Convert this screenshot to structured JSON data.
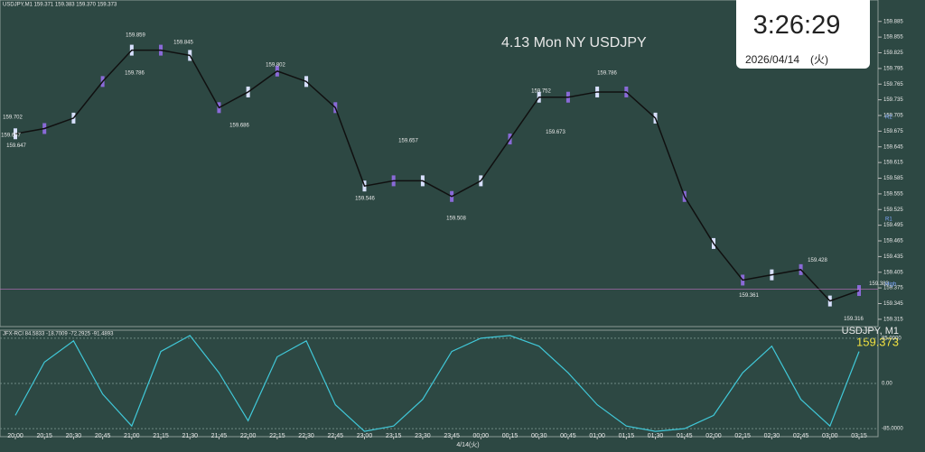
{
  "chart_data": {
    "type": "line",
    "header": "USDJPY,M1  159.371 159.383 159.370 159.373",
    "title": "4.13 Mon NY USDJPY",
    "date_label": "4/14(火)",
    "categories": [
      "20:00",
      "20:15",
      "20:30",
      "20:45",
      "21:00",
      "21:15",
      "21:30",
      "21:45",
      "22:00",
      "22:15",
      "22:30",
      "22:45",
      "23:00",
      "23:15",
      "23:30",
      "23:45",
      "00:00",
      "00:15",
      "00:30",
      "00:45",
      "01:00",
      "01:15",
      "01:30",
      "01:45",
      "02:00",
      "02:15",
      "02:30",
      "02:45",
      "03:00",
      "03:15"
    ],
    "series": [
      {
        "name": "USDJPY, M1",
        "color": "#d8e0ff",
        "values": [
          159.67,
          159.68,
          159.7,
          159.77,
          159.83,
          159.83,
          159.82,
          159.72,
          159.75,
          159.79,
          159.77,
          159.72,
          159.57,
          159.58,
          159.58,
          159.55,
          159.58,
          159.66,
          159.74,
          159.74,
          159.75,
          159.75,
          159.7,
          159.55,
          159.46,
          159.39,
          159.4,
          159.41,
          159.35,
          159.37
        ]
      }
    ],
    "ylim": [
      159.301,
      159.926
    ],
    "yticks": [
      159.315,
      159.345,
      159.375,
      159.405,
      159.435,
      159.465,
      159.495,
      159.525,
      159.555,
      159.585,
      159.615,
      159.645,
      159.675,
      159.705,
      159.735,
      159.765,
      159.795,
      159.825,
      159.855,
      159.885
    ],
    "price_labels": [
      159.859,
      159.845,
      159.786,
      159.802,
      159.702,
      159.667,
      159.647,
      159.686,
      159.657,
      159.546,
      159.508,
      159.752,
      159.786,
      159.673,
      159.428,
      159.383,
      159.361,
      159.316
    ],
    "current_price": 159.373,
    "level_labels": [
      "R2",
      "R1",
      "High"
    ],
    "oscillator": {
      "label": "JFX-RCI 84.5833 -18.7009 -72.2925 -91.4893",
      "color": "#40c8d8",
      "values": [
        -60,
        40,
        80,
        -20,
        -80,
        60,
        90,
        20,
        -70,
        50,
        80,
        -40,
        -90,
        -80,
        -30,
        60,
        85,
        90,
        70,
        20,
        -40,
        -80,
        -90,
        -85,
        -60,
        20,
        70,
        -30,
        -80,
        60
      ],
      "ylim": [
        -100,
        100
      ],
      "yticks": [
        {
          "value": 85,
          "label": "85.0000"
        },
        {
          "value": 0,
          "label": "0.00"
        },
        {
          "value": -85,
          "label": "-85.0000"
        }
      ]
    },
    "clock": {
      "time": "3:26:29",
      "date": "2026/04/14　(火)"
    }
  }
}
